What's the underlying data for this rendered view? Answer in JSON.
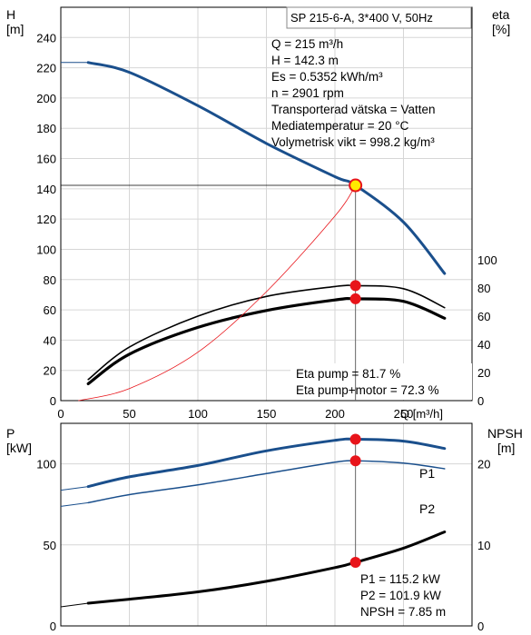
{
  "chart_data": [
    {
      "type": "line",
      "title": "SP 215-6-A, 3*400 V, 50Hz",
      "xlabel": "Q [m³/h]",
      "left_axis": {
        "label_top": "H",
        "label_unit": "[m]",
        "ylim": [
          0,
          260
        ],
        "ticks": [
          "0",
          "20",
          "40",
          "60",
          "80",
          "100",
          "120",
          "140",
          "160",
          "180",
          "200",
          "220",
          "240"
        ]
      },
      "right_axis": {
        "label_top": "eta",
        "label_unit": "[%]",
        "ylim": [
          0,
          100
        ],
        "ticks": [
          "0",
          "20",
          "40",
          "60",
          "80",
          "100"
        ]
      },
      "x_ticks": [
        "0",
        "50",
        "100",
        "150",
        "200",
        "250"
      ],
      "xlim": [
        0,
        300
      ],
      "grid": true,
      "info_lines": [
        "Q = 215 m³/h",
        "H = 142.3 m",
        "Es = 0.5352 kWh/m³",
        "n = 2901 rpm",
        "Transporterad vätska = Vatten",
        "Mediatemperatur = 20 °C",
        "Volymetrisk vikt = 998.2 kg/m³"
      ],
      "eta_lines": [
        "Eta pump = 81.7 %",
        "Eta pump+motor = 72.3 %"
      ],
      "series": [
        {
          "key": "H",
          "axis": "left",
          "color": "#1a4f8c",
          "x": [
            20,
            50,
            100,
            150,
            200,
            215,
            250,
            280
          ],
          "y": [
            223.5,
            217,
            195,
            170,
            148,
            142.3,
            118,
            84
          ]
        },
        {
          "key": "eta_pump",
          "axis": "right",
          "color": "#000000",
          "x": [
            20,
            50,
            100,
            150,
            200,
            215,
            250,
            280
          ],
          "y": [
            15,
            38,
            60,
            74,
            81,
            81.7,
            79.5,
            66
          ]
        },
        {
          "key": "eta_pump_motor",
          "axis": "right",
          "color": "#000000",
          "x": [
            20,
            50,
            100,
            150,
            200,
            215,
            250,
            280
          ],
          "y": [
            12,
            33,
            52,
            64,
            71.5,
            72.3,
            70.5,
            58.5
          ]
        },
        {
          "key": "system_curve",
          "axis": "left",
          "color": "#e8141a",
          "x": [
            13,
            50,
            100,
            150,
            200,
            215
          ],
          "y": [
            0,
            8,
            32,
            72,
            122,
            142.3
          ]
        }
      ],
      "operating_point": {
        "q": 215,
        "h": 142.3,
        "eta_pump": 81.7,
        "eta_pump_motor": 72.3
      }
    },
    {
      "type": "line",
      "left_axis": {
        "label_top": "P",
        "label_unit": "[kW]",
        "ylim": [
          0,
          125
        ],
        "ticks": [
          "0",
          "50",
          "100"
        ]
      },
      "right_axis": {
        "label_top": "NPSH",
        "label_unit": "[m]",
        "ylim": [
          0,
          25
        ],
        "ticks": [
          "0",
          "10",
          "20"
        ]
      },
      "xlim": [
        0,
        300
      ],
      "grid": true,
      "series": [
        {
          "name": "P1",
          "axis": "left",
          "color": "#1a4f8c",
          "x": [
            20,
            50,
            100,
            150,
            200,
            215,
            250,
            280
          ],
          "y": [
            86,
            92,
            99,
            108,
            114.5,
            115.2,
            114,
            109.5
          ]
        },
        {
          "name": "P2",
          "axis": "left",
          "color": "#1a4f8c",
          "x": [
            20,
            50,
            100,
            150,
            200,
            215,
            250,
            280
          ],
          "y": [
            76,
            81,
            87,
            94,
            101,
            101.9,
            100.5,
            97
          ]
        },
        {
          "key": "npsh",
          "axis": "right",
          "color": "#000000",
          "x": [
            20,
            50,
            100,
            150,
            200,
            215,
            250,
            280
          ],
          "y": [
            2.8,
            3.3,
            4.2,
            5.5,
            7.2,
            7.85,
            9.6,
            11.6
          ]
        }
      ],
      "info_lines": [
        "P1 = 115.2 kW",
        "P2 = 101.9 kW",
        "NPSH = 7.85 m"
      ],
      "operating_point": {
        "q": 215,
        "p1": 115.2,
        "p2": 101.9,
        "npsh": 7.85
      }
    }
  ]
}
